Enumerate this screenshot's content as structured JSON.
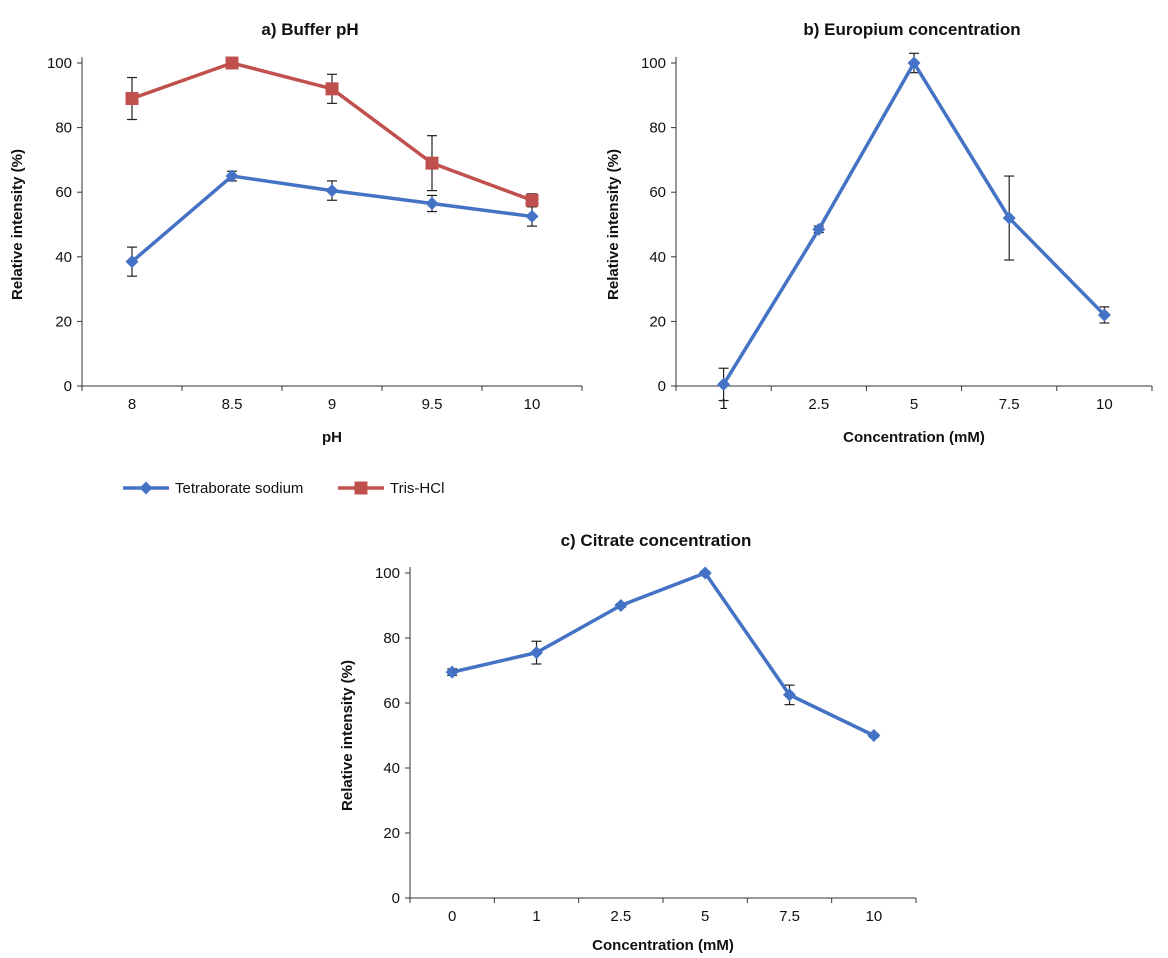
{
  "chart_data": [
    {
      "type": "line",
      "title": "a) Buffer pH",
      "xlabel": "pH",
      "ylabel": "Relative intensity (%)",
      "categories": [
        "8",
        "8.5",
        "9",
        "9.5",
        "10"
      ],
      "ylim": [
        0,
        100
      ],
      "yticks": [
        "0",
        "20",
        "40",
        "60",
        "80",
        "100"
      ],
      "series": [
        {
          "name": "Tetraborate sodium",
          "color": "#4472c4",
          "marker": "diamond",
          "values": [
            38.5,
            65,
            60.5,
            56.5,
            52.5
          ],
          "errors": [
            4.5,
            1.5,
            3,
            2.5,
            3
          ]
        },
        {
          "name": "Tris-HCl",
          "color": "#c0504d",
          "marker": "square",
          "values": [
            89,
            100,
            92,
            69,
            57.5
          ],
          "errors": [
            6.5,
            0,
            4.5,
            8.5,
            2
          ]
        }
      ],
      "legend": "bottom-left",
      "grid": false
    },
    {
      "type": "line",
      "title": "b) Europium concentration",
      "xlabel": "Concentration (mM)",
      "ylabel": "Relative intensity (%)",
      "categories": [
        "1",
        "2.5",
        "5",
        "7.5",
        "10"
      ],
      "ylim": [
        0,
        100
      ],
      "yticks": [
        "0",
        "20",
        "40",
        "60",
        "80",
        "100"
      ],
      "series": [
        {
          "color": "#4472c4",
          "marker": "diamond",
          "values": [
            0.5,
            48.5,
            100,
            52,
            22
          ],
          "errors": [
            5,
            1,
            3,
            13,
            2.5
          ]
        }
      ],
      "grid": false
    },
    {
      "type": "line",
      "title": "c) Citrate concentration",
      "xlabel": "Concentration (mM)",
      "ylabel": "Relative intensity (%)",
      "categories": [
        "0",
        "1",
        "2.5",
        "5",
        "7.5",
        "10"
      ],
      "ylim": [
        0,
        100
      ],
      "yticks": [
        "0",
        "20",
        "40",
        "60",
        "80",
        "100"
      ],
      "series": [
        {
          "color": "#4472c4",
          "marker": "diamond",
          "values": [
            69.5,
            75.5,
            90,
            100,
            62.5,
            50
          ],
          "errors": [
            1,
            3.5,
            0.5,
            0.5,
            3,
            0.5
          ]
        }
      ],
      "grid": false
    }
  ]
}
